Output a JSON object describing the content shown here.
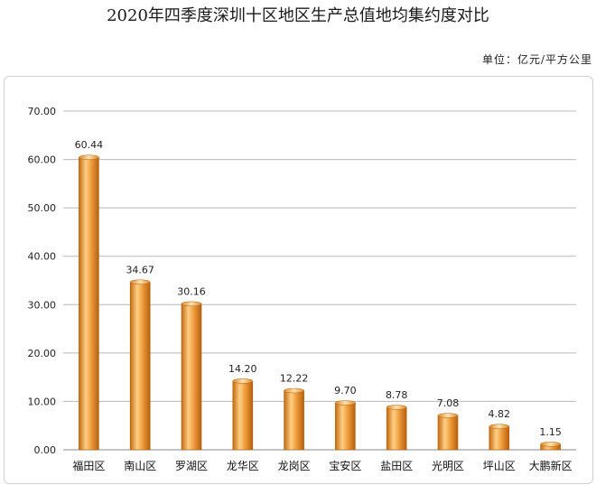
{
  "title": "2020年四季度深圳十区地区生产总值地均集约度对比",
  "unit_label": "单位：亿元/平方公里",
  "colors": {
    "bar_main": "#f0a040",
    "bar_dark": "#c46a10",
    "bar_light": "#ffd59a",
    "grid": "#b8b8b8"
  },
  "chart_data": {
    "type": "bar",
    "categories": [
      "福田区",
      "南山区",
      "罗湖区",
      "龙华区",
      "龙岗区",
      "宝安区",
      "盐田区",
      "光明区",
      "坪山区",
      "大鹏新区"
    ],
    "values": [
      60.44,
      34.67,
      30.16,
      14.2,
      12.22,
      9.7,
      8.78,
      7.08,
      4.82,
      1.15
    ],
    "value_labels": [
      "60.44",
      "34.67",
      "30.16",
      "14.20",
      "12.22",
      "9.70",
      "8.78",
      "7.08",
      "4.82",
      "1.15"
    ],
    "ylim": [
      0,
      70
    ],
    "yticks": [
      0,
      10,
      20,
      30,
      40,
      50,
      60,
      70
    ],
    "ytick_labels": [
      "0.00",
      "10.00",
      "20.00",
      "30.00",
      "40.00",
      "50.00",
      "60.00",
      "70.00"
    ],
    "grid": true,
    "legend": "none"
  }
}
